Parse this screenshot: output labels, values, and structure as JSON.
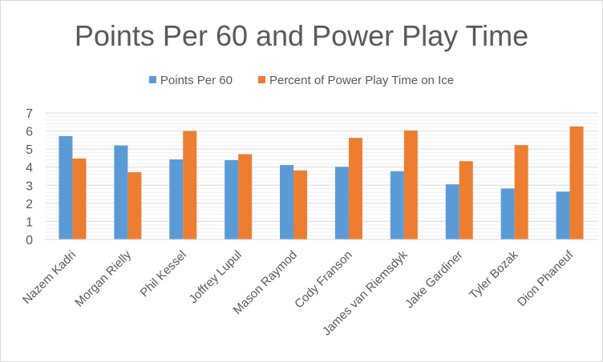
{
  "chart_data": {
    "type": "bar",
    "title": "Points Per 60 and Power Play Time",
    "categories": [
      "Nazem Kadri",
      "Morgan Rielly",
      "Phil Kessel",
      "Joffrey Lupul",
      "Mason Raymod",
      "Cody Franson",
      "James van Riemsdyk",
      "Jake Gardiner",
      "Tyler Bozak",
      "Dion Phaneuf"
    ],
    "series": [
      {
        "name": "Points Per 60",
        "color": "#5b9bd5",
        "values": [
          5.72,
          5.2,
          4.43,
          4.39,
          4.12,
          4.02,
          3.77,
          3.05,
          2.82,
          2.65
        ]
      },
      {
        "name": "Percent of Power Play Time on Ice",
        "color": "#ed7d31",
        "values": [
          4.48,
          3.72,
          6.0,
          4.72,
          3.82,
          5.62,
          6.03,
          4.33,
          5.22,
          6.25
        ]
      }
    ],
    "ylim": [
      0,
      7
    ],
    "yticks": [
      "0",
      "1",
      "2",
      "3",
      "4",
      "5",
      "6",
      "7"
    ],
    "legend_position": "top",
    "grid": true,
    "xlabel": "",
    "ylabel": ""
  }
}
